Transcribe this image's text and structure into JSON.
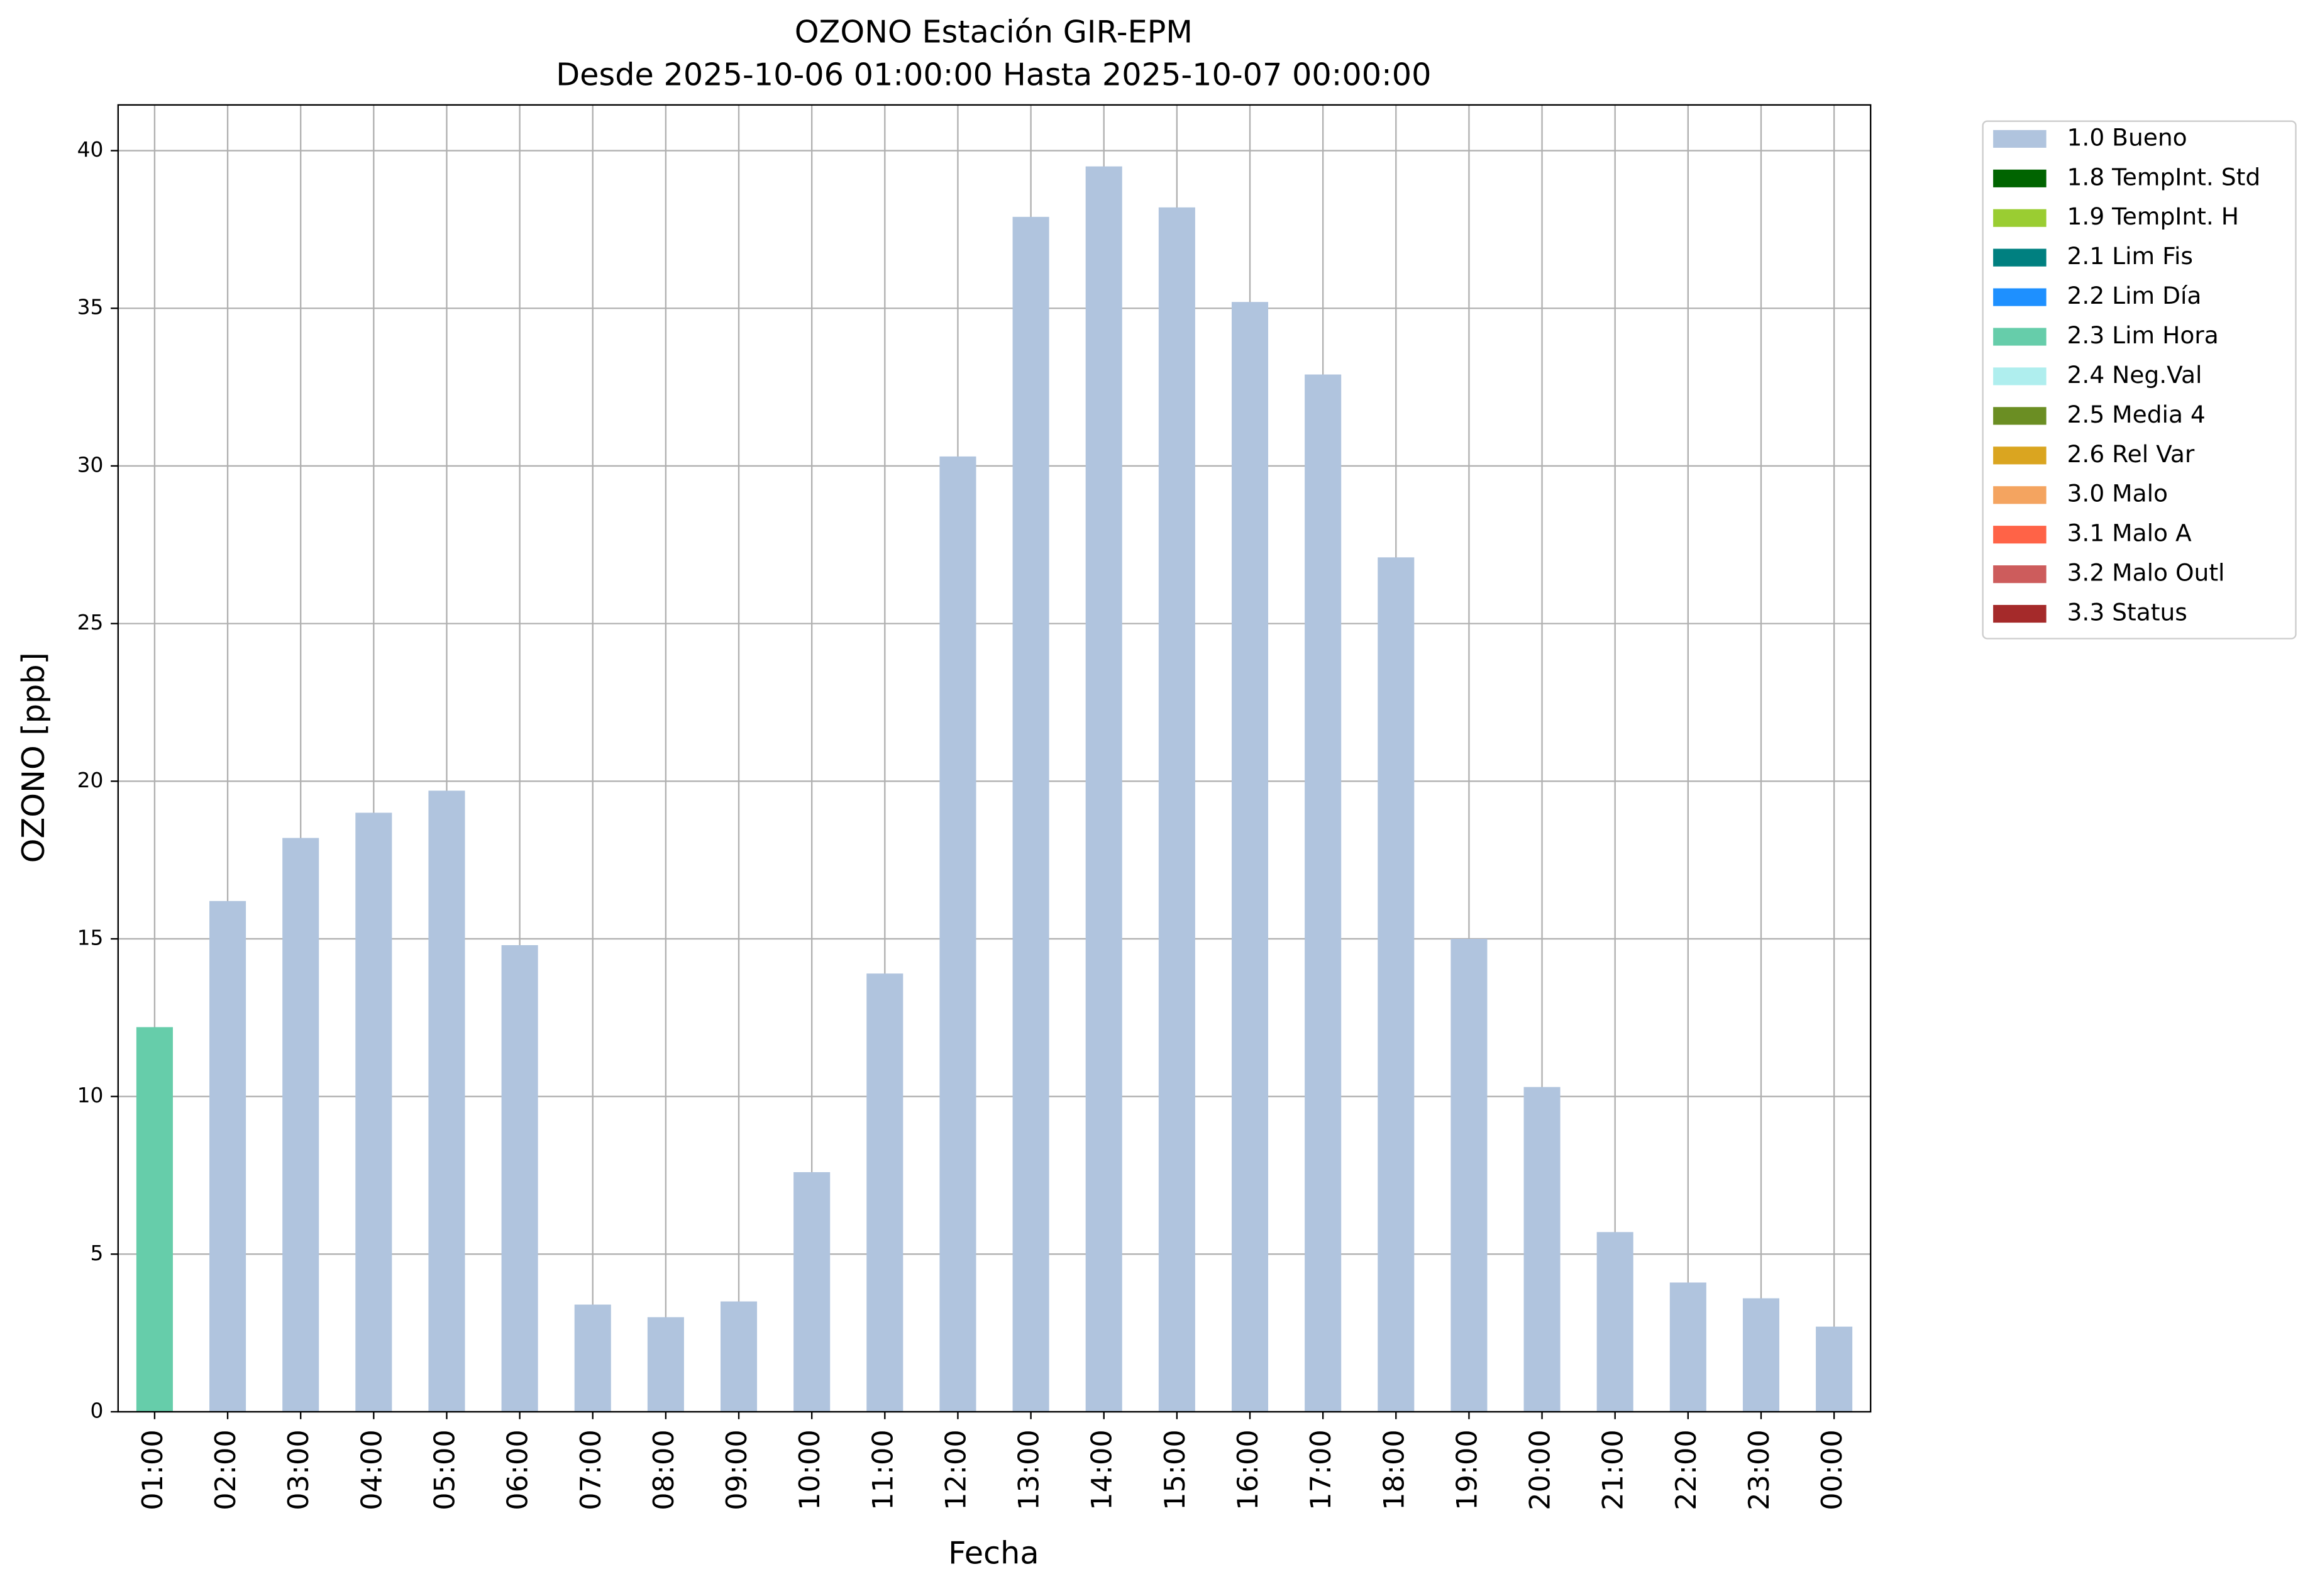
{
  "chart_data": {
    "type": "bar",
    "title": "OZONO Estación GIR-EPM",
    "subtitle": "Desde 2025-10-06 01:00:00 Hasta 2025-10-07 00:00:00",
    "x_label": "Fecha",
    "y_label": "OZONO [ppb]",
    "categories": [
      "01:00",
      "02:00",
      "03:00",
      "04:00",
      "05:00",
      "06:00",
      "07:00",
      "08:00",
      "09:00",
      "10:00",
      "11:00",
      "12:00",
      "13:00",
      "14:00",
      "15:00",
      "16:00",
      "17:00",
      "18:00",
      "19:00",
      "20:00",
      "21:00",
      "22:00",
      "23:00",
      "00:00"
    ],
    "values": [
      12.2,
      16.2,
      18.2,
      19.0,
      19.7,
      14.8,
      3.4,
      3.0,
      3.5,
      7.6,
      13.9,
      30.3,
      37.9,
      39.5,
      38.2,
      35.2,
      32.9,
      27.1,
      15.0,
      10.3,
      5.7,
      4.1,
      3.6,
      2.7
    ],
    "colors": [
      "#66cdaa",
      "#b0c4de",
      "#b0c4de",
      "#b0c4de",
      "#b0c4de",
      "#b0c4de",
      "#b0c4de",
      "#b0c4de",
      "#b0c4de",
      "#b0c4de",
      "#b0c4de",
      "#b0c4de",
      "#b0c4de",
      "#b0c4de",
      "#b0c4de",
      "#b0c4de",
      "#b0c4de",
      "#b0c4de",
      "#b0c4de",
      "#b0c4de",
      "#b0c4de",
      "#b0c4de",
      "#b0c4de",
      "#b0c4de"
    ],
    "legend": [
      {
        "name": "1.0 Bueno",
        "color": "#b0c4de"
      },
      {
        "name": "1.8 TempInt. Std",
        "color": "#006400"
      },
      {
        "name": "1.9 TempInt. H",
        "color": "#9acd32"
      },
      {
        "name": "2.1 Lim Fis",
        "color": "#008080"
      },
      {
        "name": "2.2 Lim Día",
        "color": "#1e90ff"
      },
      {
        "name": "2.3 Lim Hora",
        "color": "#66cdaa"
      },
      {
        "name": "2.4 Neg.Val",
        "color": "#afeeee"
      },
      {
        "name": "2.5 Media 4",
        "color": "#6b8e23"
      },
      {
        "name": "2.6 Rel Var",
        "color": "#daa520"
      },
      {
        "name": "3.0 Malo",
        "color": "#f4a460"
      },
      {
        "name": "3.1 Malo A",
        "color": "#ff6347"
      },
      {
        "name": "3.2 Malo Outl",
        "color": "#cd5c5c"
      },
      {
        "name": "3.3 Status",
        "color": "#a52a2a"
      }
    ],
    "legend_position": "outside upper right",
    "ylim": [
      0,
      41.45
    ],
    "yticks": [
      0,
      5,
      10,
      15,
      20,
      25,
      30,
      35,
      40
    ],
    "grid": true
  }
}
